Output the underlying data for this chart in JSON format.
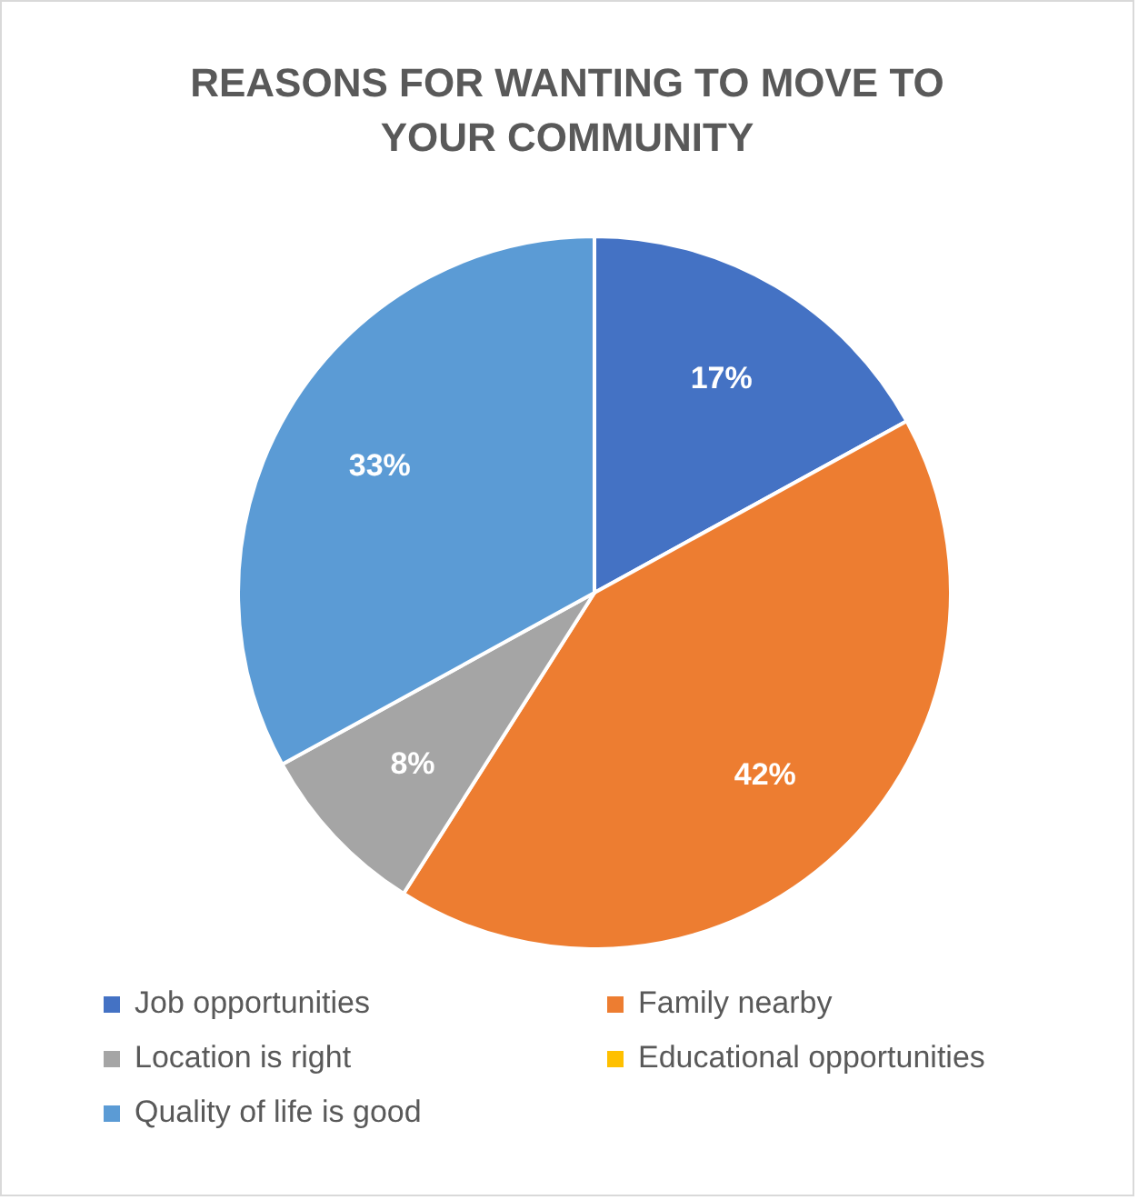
{
  "chart_data": {
    "type": "pie",
    "title": "REASONS FOR WANTING TO MOVE TO YOUR COMMUNITY",
    "categories": [
      "Job opportunities",
      "Family  nearby",
      "Location is right",
      "Educational opportunities",
      "Quality of life is good"
    ],
    "values": [
      17,
      42,
      8,
      0,
      33
    ],
    "colors": [
      "#4472c4",
      "#ed7d31",
      "#a5a5a5",
      "#ffc000",
      "#5b9bd5"
    ],
    "value_labels": [
      "17%",
      "42%",
      "8%",
      null,
      "33%"
    ],
    "legend": "bottom"
  }
}
